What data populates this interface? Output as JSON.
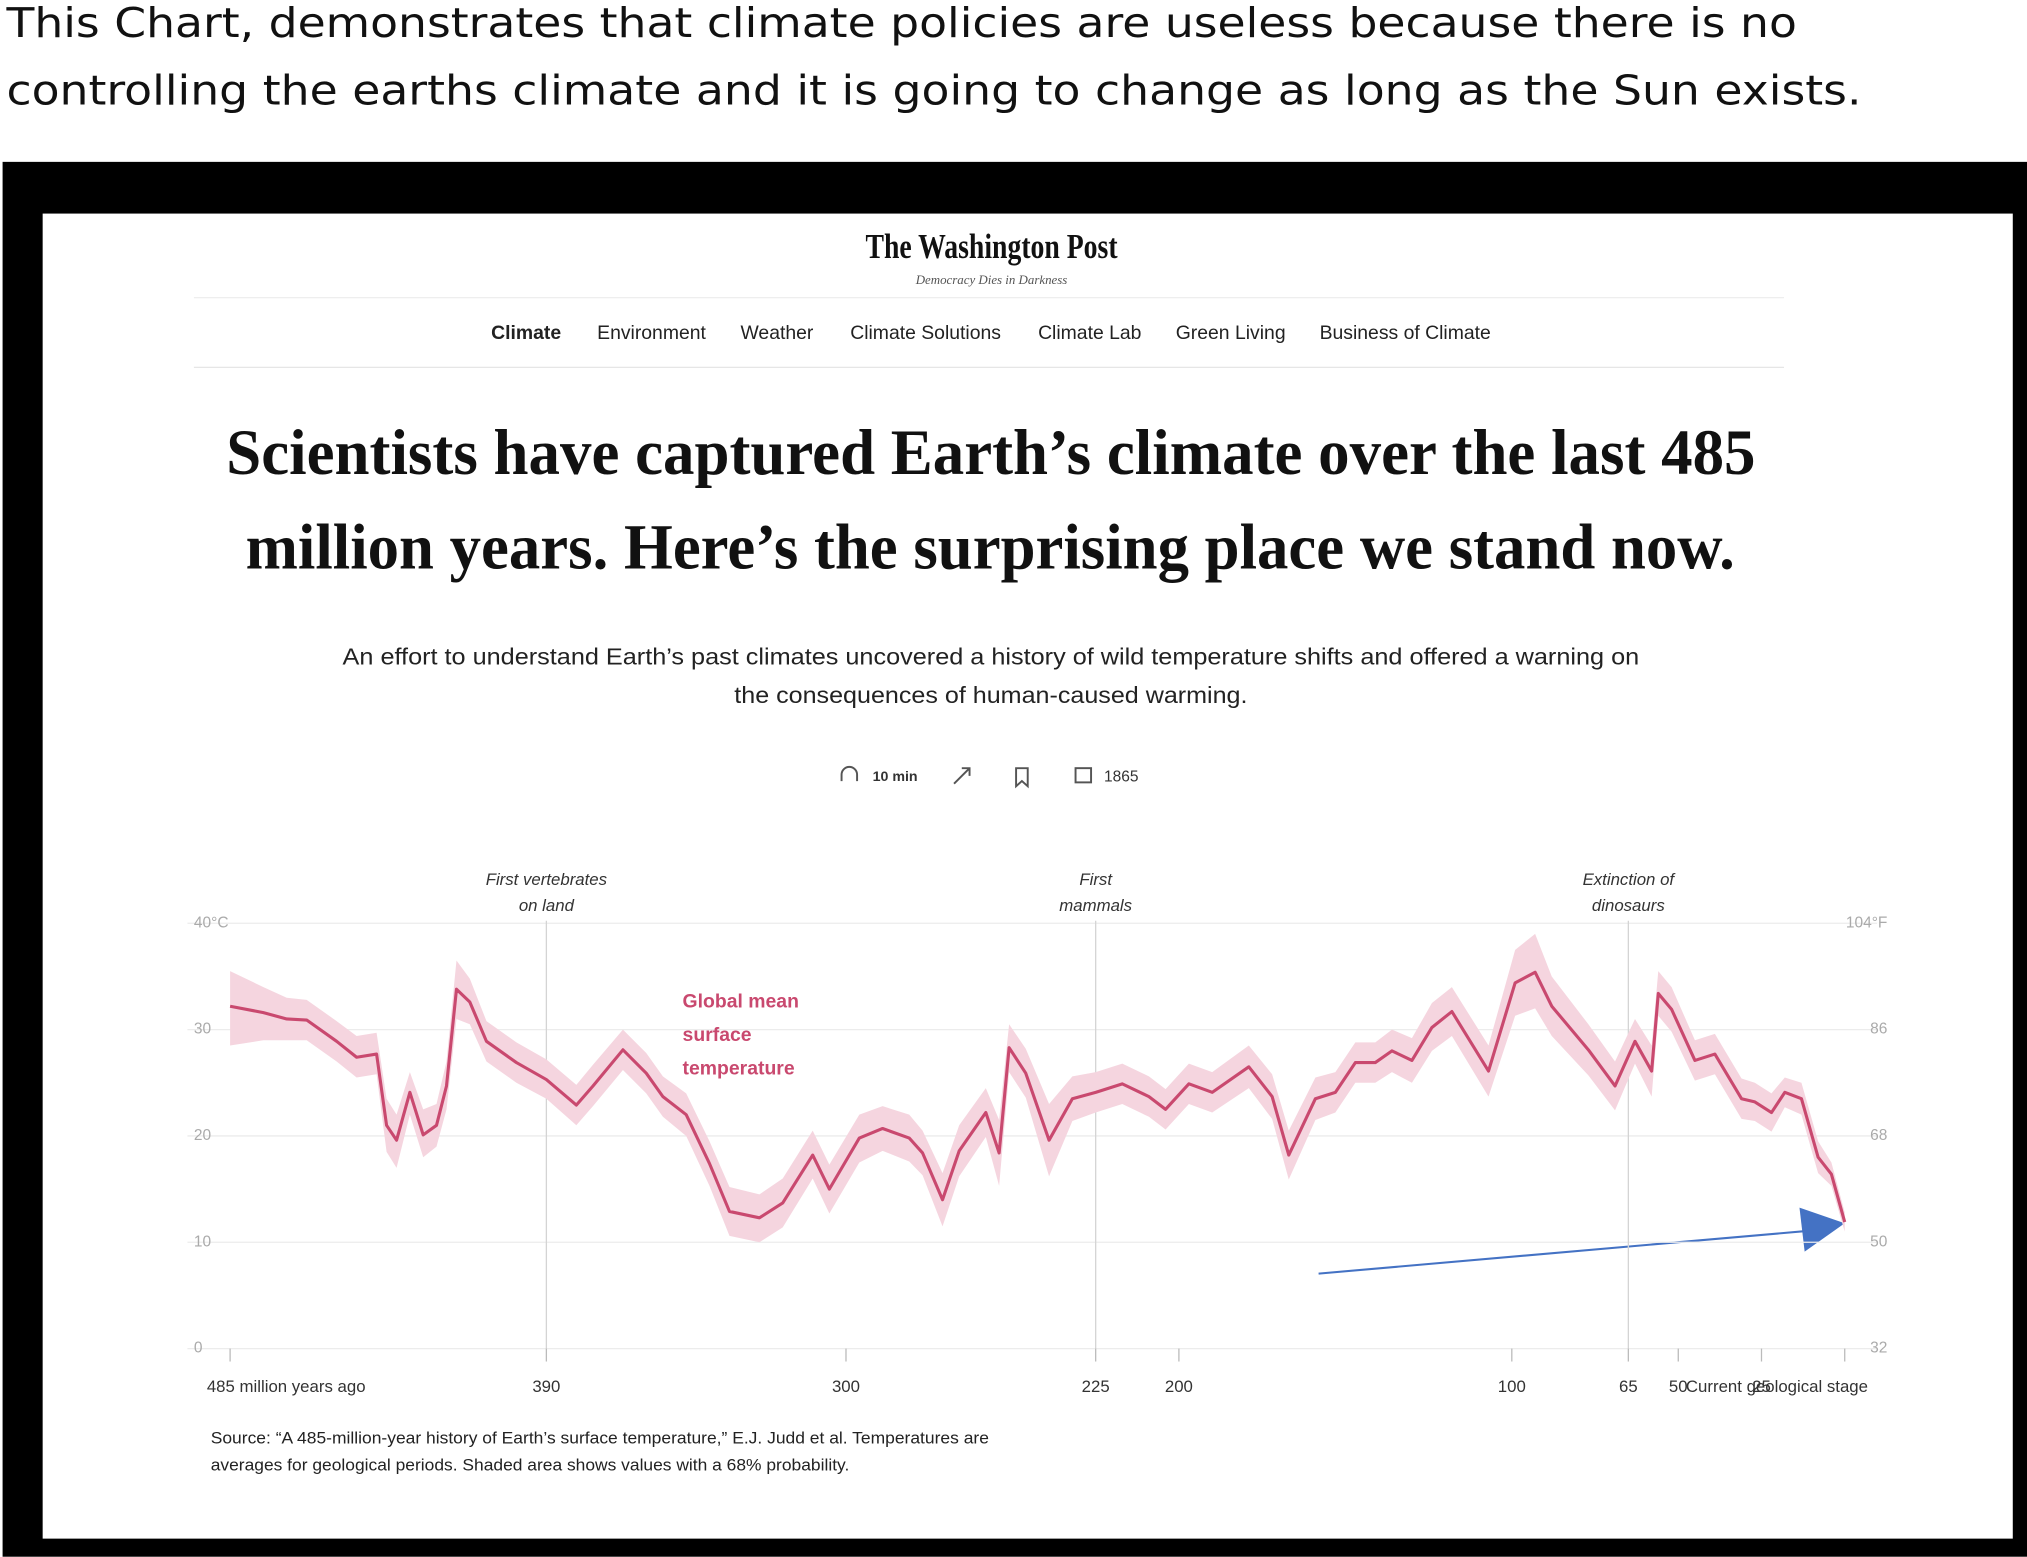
{
  "caption": [
    "This Chart, demonstrates that climate policies are useless because there is no",
    "controlling the earths climate and it is going to change as long as the Sun exists."
  ],
  "header": {
    "logo": "The Washington Post",
    "tagline": "Democracy Dies in Darkness",
    "nav": [
      "Climate",
      "Environment",
      "Weather",
      "Climate Solutions",
      "Climate Lab",
      "Green Living",
      "Business of Climate"
    ],
    "headline": [
      "Scientists have captured Earth’s climate over the last 485",
      "million years. Here’s the surprising place we stand now."
    ],
    "dek": [
      "An effort to understand Earth’s past climates uncovered a history of wild temperature shifts and offered a warning on",
      "the consequences of human-caused warming."
    ],
    "read_time": "10 min",
    "comments": 1865
  },
  "chart_data": {
    "type": "line",
    "x": [
      485,
      475,
      468,
      462,
      453,
      447,
      441,
      438,
      435,
      431,
      427,
      423,
      420,
      417,
      413,
      408,
      399,
      390,
      381,
      376,
      367,
      360,
      355,
      348,
      341,
      335,
      326,
      319,
      310,
      305,
      296,
      289,
      281,
      277,
      271,
      266,
      258,
      254,
      251,
      246,
      239,
      232,
      225,
      217,
      209,
      204,
      197,
      190,
      179,
      172,
      167,
      159,
      153,
      147,
      141,
      136,
      130,
      124,
      118,
      107,
      99,
      93,
      88,
      77,
      69,
      63,
      58,
      56,
      52,
      45,
      39,
      31,
      27,
      22,
      18,
      13,
      8,
      4,
      0
    ],
    "series": [
      {
        "name": "Global mean surface temperature",
        "color": "#c9496f",
        "values": [
          32.2,
          31.6,
          31.0,
          30.9,
          28.9,
          27.4,
          27.7,
          21.0,
          19.6,
          24.1,
          20.1,
          21.0,
          24.7,
          33.8,
          32.6,
          28.9,
          26.9,
          25.3,
          22.9,
          24.7,
          28.1,
          25.9,
          23.7,
          22.0,
          17.4,
          12.9,
          12.3,
          13.7,
          18.2,
          15.0,
          19.8,
          20.7,
          19.8,
          18.4,
          14.0,
          18.6,
          22.2,
          18.4,
          28.3,
          25.9,
          19.6,
          23.5,
          24.1,
          24.9,
          23.7,
          22.5,
          24.9,
          24.1,
          26.5,
          23.7,
          18.2,
          23.5,
          24.1,
          26.9,
          26.9,
          28.0,
          27.1,
          30.2,
          31.7,
          26.1,
          34.4,
          35.4,
          32.2,
          28.1,
          24.7,
          28.9,
          26.1,
          33.4,
          31.9,
          27.1,
          27.7,
          23.5,
          23.2,
          22.2,
          24.1,
          23.5,
          18.0,
          16.4,
          11.9
        ]
      }
    ],
    "band": {
      "color": "#f5d5df",
      "upper": [
        35.5,
        34.0,
        33.0,
        32.8,
        30.8,
        29.4,
        29.7,
        23.5,
        22.0,
        26.0,
        22.5,
        23.0,
        27.0,
        36.5,
        34.8,
        30.8,
        28.8,
        27.2,
        24.8,
        26.7,
        30.0,
        27.8,
        25.6,
        24.0,
        19.5,
        15.2,
        14.5,
        16.0,
        20.5,
        17.3,
        22.0,
        22.8,
        22.0,
        20.5,
        16.5,
        21.0,
        24.5,
        21.5,
        30.5,
        28.2,
        23.0,
        25.6,
        26.0,
        26.8,
        25.6,
        24.4,
        26.8,
        26.0,
        28.5,
        25.8,
        20.5,
        25.5,
        26.0,
        28.8,
        28.8,
        30.0,
        29.2,
        32.5,
        34.0,
        28.5,
        37.5,
        39.0,
        35.0,
        30.5,
        27.0,
        31.0,
        28.5,
        35.5,
        34.0,
        29.0,
        29.6,
        25.4,
        25.0,
        24.0,
        25.5,
        25.0,
        19.5,
        17.5,
        12.8
      ],
      "lower": [
        28.5,
        29.0,
        29.0,
        29.0,
        27.0,
        25.5,
        25.8,
        18.5,
        17.0,
        22.0,
        18.0,
        19.0,
        22.5,
        31.0,
        30.5,
        27.0,
        25.0,
        23.5,
        21.0,
        22.8,
        26.2,
        24.0,
        21.8,
        20.0,
        15.3,
        10.6,
        10.0,
        11.4,
        16.0,
        12.7,
        17.5,
        18.6,
        17.6,
        16.3,
        11.5,
        16.2,
        19.9,
        15.3,
        26.0,
        23.6,
        16.2,
        21.4,
        22.2,
        23.0,
        21.8,
        20.6,
        23.0,
        22.2,
        24.5,
        21.6,
        15.9,
        21.5,
        22.2,
        25.0,
        25.0,
        26.0,
        25.0,
        28.0,
        29.4,
        23.7,
        31.3,
        32.0,
        29.4,
        25.7,
        22.4,
        26.8,
        23.7,
        31.3,
        29.8,
        25.2,
        25.8,
        21.6,
        21.4,
        20.4,
        22.7,
        22.0,
        16.5,
        15.3,
        11.0
      ]
    },
    "xlim": [
      485,
      0
    ],
    "xticks": [
      {
        "value": 485,
        "label": "485 million years ago"
      },
      390,
      300,
      225,
      200,
      100,
      65,
      50,
      25,
      {
        "value": 0,
        "label": "Current geological stage"
      }
    ],
    "ylim": [
      0,
      40
    ],
    "yticks": [
      0,
      10,
      20,
      30,
      {
        "value": 40,
        "label": "40°C"
      }
    ],
    "y2lim": [
      32,
      104
    ],
    "y2ticks": [
      32,
      50,
      68,
      86,
      {
        "value": 104,
        "label": "104°F"
      }
    ],
    "grid": true,
    "annotations": [
      {
        "text": [
          "First vertebrates",
          "on land"
        ],
        "x": 390
      },
      {
        "text": [
          "First",
          "mammals"
        ],
        "x": 225
      },
      {
        "text": [
          "Extinction of",
          "dinosaurs"
        ],
        "x": 65
      }
    ],
    "source": [
      "Source: “A 485-million-year history of Earth’s surface temperature,” E.J. Judd et al. Temperatures are",
      "averages for geological periods. Shaded area shows values with a 68% probability."
    ]
  }
}
